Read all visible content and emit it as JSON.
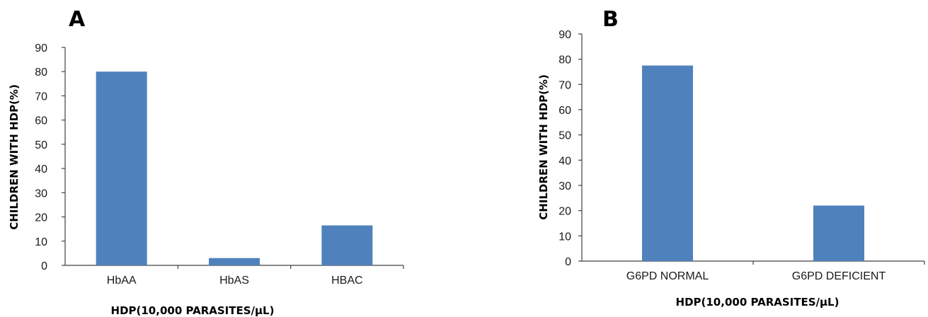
{
  "chart_data": [
    {
      "type": "bar",
      "panel": "A",
      "categories": [
        "HbAA",
        "HbAS",
        "HBAC"
      ],
      "values": [
        80,
        3,
        16.5
      ],
      "title": "",
      "xlabel": "HDP(10,000 PARASITES/µL)",
      "ylabel": "CHILDREN WITH HDP(%)",
      "ylim": [
        0,
        90
      ],
      "yticks": [
        0,
        10,
        20,
        30,
        40,
        50,
        60,
        70,
        80,
        90
      ],
      "grid": false,
      "bar_color": "#4f81bd"
    },
    {
      "type": "bar",
      "panel": "B",
      "categories": [
        "G6PD NORMAL",
        "G6PD DEFICIENT"
      ],
      "values": [
        77.5,
        22
      ],
      "title": "",
      "xlabel": "HDP(10,000 PARASITES/µL)",
      "ylabel": "CHILDREN WITH HDP(%)",
      "ylim": [
        0,
        90
      ],
      "yticks": [
        0,
        10,
        20,
        30,
        40,
        50,
        60,
        70,
        80,
        90
      ],
      "grid": false,
      "bar_color": "#4f81bd"
    }
  ]
}
